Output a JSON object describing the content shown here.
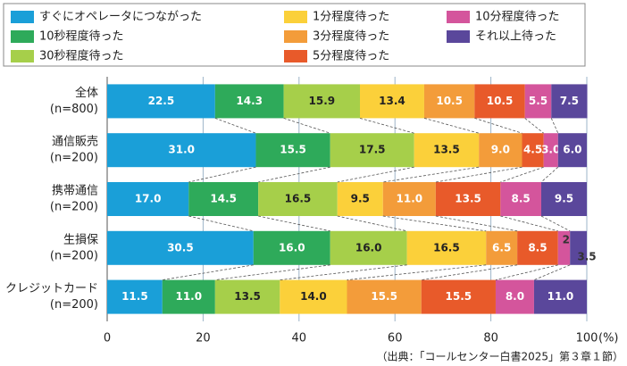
{
  "chart_data": {
    "type": "stacked-bar-horizontal",
    "categories": [
      [
        "全体",
        "(n=800)"
      ],
      [
        "通信販売",
        "(n=200)"
      ],
      [
        "携帯通信",
        "(n=200)"
      ],
      [
        "生損保",
        "(n=200)"
      ],
      [
        "クレジットカード",
        "(n=200)"
      ]
    ],
    "series": [
      {
        "name": "すぐにオペレータにつながった",
        "color": "#1a9fd8",
        "values": [
          22.5,
          31.0,
          17.0,
          30.5,
          11.5
        ],
        "value_labels": [
          "22.5",
          "31.0",
          "17.0",
          "30.5",
          "11.5"
        ]
      },
      {
        "name": "10秒程度待った",
        "color": "#2eaa5a",
        "values": [
          14.3,
          15.5,
          14.5,
          16.0,
          11.0
        ],
        "value_labels": [
          "14.3",
          "15.5",
          "14.5",
          "16.0",
          "11.0"
        ]
      },
      {
        "name": "30秒程度待った",
        "color": "#a6cf4a",
        "values": [
          15.9,
          17.5,
          16.5,
          16.0,
          13.5
        ],
        "value_labels": [
          "15.9",
          "17.5",
          "16.5",
          "16.0",
          "13.5"
        ]
      },
      {
        "name": "1分程度待った",
        "color": "#fbd03a",
        "values": [
          13.4,
          13.5,
          9.5,
          16.5,
          14.0
        ],
        "value_labels": [
          "13.4",
          "13.5",
          "9.5",
          "16.5",
          "14.0"
        ]
      },
      {
        "name": "3分程度待った",
        "color": "#f39c3a",
        "values": [
          10.5,
          9.0,
          11.0,
          6.5,
          15.5
        ],
        "value_labels": [
          "10.5",
          "9.0",
          "11.0",
          "6.5",
          "15.5"
        ]
      },
      {
        "name": "5分程度待った",
        "color": "#e85a2a",
        "values": [
          10.5,
          4.5,
          13.5,
          8.5,
          15.5
        ],
        "value_labels": [
          "10.5",
          "4.5",
          "13.5",
          "8.5",
          "15.5"
        ]
      },
      {
        "name": "10分程度待った",
        "color": "#d4559c",
        "values": [
          5.5,
          3.0,
          8.5,
          2.5,
          8.0
        ],
        "value_labels": [
          "5.5",
          "3.0",
          "8.5",
          "2.5",
          "8.0"
        ]
      },
      {
        "name": "それ以上待った",
        "color": "#5a479b",
        "values": [
          7.5,
          6.0,
          9.5,
          3.5,
          11.0
        ],
        "value_labels": [
          "7.5",
          "6.0",
          "9.5",
          "3.5",
          "11.0"
        ]
      }
    ],
    "xlim": [
      0,
      100
    ],
    "xticks": [
      0,
      20,
      40,
      60,
      80,
      100
    ],
    "xlabel": "(%)",
    "grid": true,
    "source": "（出典：「コールセンター白書2025」第３章１節）"
  }
}
